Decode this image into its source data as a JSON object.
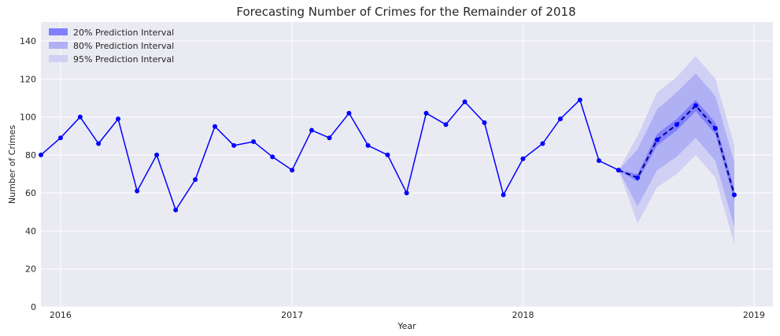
{
  "chart_data": {
    "type": "line",
    "title": "Forecasting Number of Crimes for the Remainder of 2018",
    "xlabel": "Year",
    "ylabel": "Number of Crimes",
    "xlim": [
      "2015-12-01",
      "2019-01-31"
    ],
    "ylim": [
      0,
      150
    ],
    "x_ticks": [
      "2016",
      "2017",
      "2018",
      "2019"
    ],
    "y_ticks": [
      0,
      20,
      40,
      60,
      80,
      100,
      120,
      140
    ],
    "grid": true,
    "legend_position": "top-left",
    "colors": {
      "plot_background": "#eaeaf2",
      "grid": "#ffffff",
      "line": "#0000ff",
      "pi20": "#8080ff",
      "pi80": "#b0b0f5",
      "pi95": "#d0d0f4"
    },
    "series": [
      {
        "values": [
          {
            "x": "2015-12",
            "y": 80
          },
          {
            "x": "2016-01",
            "y": 89
          },
          {
            "x": "2016-02",
            "y": 100
          },
          {
            "x": "2016-03",
            "y": 86
          },
          {
            "x": "2016-04",
            "y": 99
          },
          {
            "x": "2016-05",
            "y": 61
          },
          {
            "x": "2016-06",
            "y": 80
          },
          {
            "x": "2016-07",
            "y": 51
          },
          {
            "x": "2016-08",
            "y": 67
          },
          {
            "x": "2016-09",
            "y": 95
          },
          {
            "x": "2016-10",
            "y": 85
          },
          {
            "x": "2016-11",
            "y": 87
          },
          {
            "x": "2016-12",
            "y": 79
          },
          {
            "x": "2017-01",
            "y": 72
          },
          {
            "x": "2017-02",
            "y": 93
          },
          {
            "x": "2017-03",
            "y": 89
          },
          {
            "x": "2017-04",
            "y": 102
          },
          {
            "x": "2017-05",
            "y": 85
          },
          {
            "x": "2017-06",
            "y": 80
          },
          {
            "x": "2017-07",
            "y": 60
          },
          {
            "x": "2017-08",
            "y": 102
          },
          {
            "x": "2017-09",
            "y": 96
          },
          {
            "x": "2017-10",
            "y": 108
          },
          {
            "x": "2017-11",
            "y": 97
          },
          {
            "x": "2017-12",
            "y": 59
          },
          {
            "x": "2018-01",
            "y": 78
          },
          {
            "x": "2018-02",
            "y": 86
          },
          {
            "x": "2018-03",
            "y": 99
          },
          {
            "x": "2018-04",
            "y": 109
          },
          {
            "x": "2018-05",
            "y": 77
          },
          {
            "x": "2018-06",
            "y": 72
          }
        ]
      },
      {
        "style": "dashed",
        "values": [
          {
            "x": "2018-06",
            "y": 72
          },
          {
            "x": "2018-07",
            "y": 68
          },
          {
            "x": "2018-08",
            "y": 88
          },
          {
            "x": "2018-09",
            "y": 96
          },
          {
            "x": "2018-10",
            "y": 106
          },
          {
            "x": "2018-11",
            "y": 94
          },
          {
            "x": "2018-12",
            "y": 59
          }
        ]
      }
    ],
    "intervals": [
      {
        "name": "20% Prediction Interval",
        "x": [
          "2018-06",
          "2018-07",
          "2018-08",
          "2018-09",
          "2018-10",
          "2018-11",
          "2018-12"
        ],
        "lower": [
          72,
          66,
          85,
          93,
          103,
          91,
          56
        ],
        "upper": [
          72,
          70,
          91,
          99,
          109,
          97,
          62
        ]
      },
      {
        "name": "80% Prediction Interval",
        "x": [
          "2018-06",
          "2018-07",
          "2018-08",
          "2018-09",
          "2018-10",
          "2018-11",
          "2018-12"
        ],
        "lower": [
          72,
          53,
          72,
          79,
          89,
          77,
          42
        ],
        "upper": [
          72,
          83,
          104,
          113,
          123,
          111,
          76
        ]
      },
      {
        "name": "95% Prediction Interval",
        "x": [
          "2018-06",
          "2018-07",
          "2018-08",
          "2018-09",
          "2018-10",
          "2018-11",
          "2018-12"
        ],
        "lower": [
          72,
          44,
          63,
          70,
          80,
          68,
          33
        ],
        "upper": [
          72,
          90,
          113,
          121,
          132,
          120,
          85
        ]
      }
    ]
  }
}
